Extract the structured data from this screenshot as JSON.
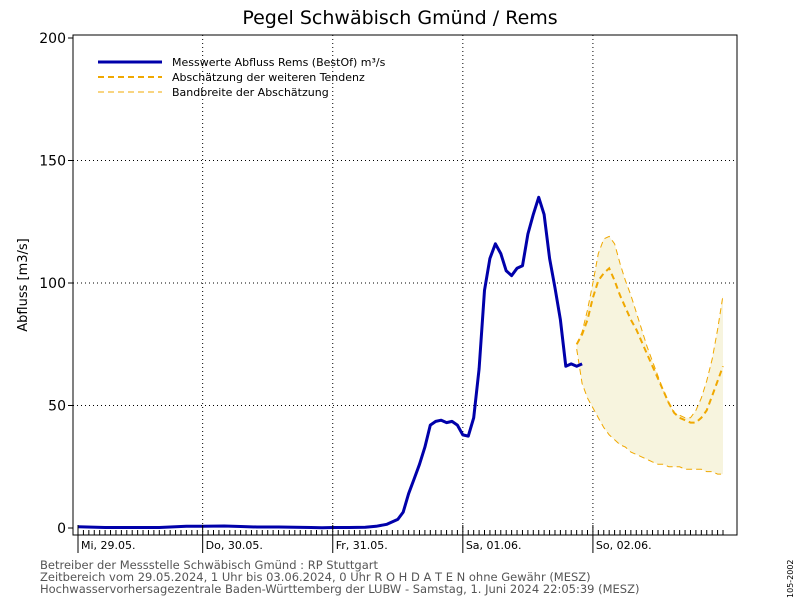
{
  "chart_data": {
    "type": "line",
    "title": "Pegel Schwäbisch Gmünd / Rems",
    "ylabel": "Abfluss [m3/s]",
    "xlabel": "",
    "ylim": [
      0,
      200
    ],
    "yticks": [
      0,
      50,
      100,
      150,
      200
    ],
    "grid": true,
    "legend_position": "top-left",
    "x_unit": "hours since 29.05.2024 01:00 (MESZ)",
    "day_labels": [
      {
        "label": "Mi, 29.05.",
        "x": 0
      },
      {
        "label": "Do, 30.05.",
        "x": 23
      },
      {
        "label": "Fr, 31.05.",
        "x": 47
      },
      {
        "label": "Sa, 01.06.",
        "x": 71
      },
      {
        "label": "So, 02.06.",
        "x": 95
      }
    ],
    "xlim": [
      0,
      119
    ],
    "series": [
      {
        "name": "Messwerte Abfluss Rems (BestOf)   m³/s",
        "color": "#0000aa",
        "style": "solid",
        "x": [
          0,
          5,
          10,
          15,
          18,
          20,
          23,
          27,
          30,
          33,
          37,
          40,
          43,
          45,
          47,
          50,
          53,
          55,
          57,
          59,
          60,
          61,
          62,
          63,
          64,
          65,
          66,
          67,
          68,
          69,
          70,
          71,
          72,
          73,
          74,
          75,
          76,
          77,
          78,
          79,
          80,
          81,
          82,
          83,
          84,
          85,
          86,
          87,
          88,
          89,
          90,
          91,
          92,
          93
        ],
        "values": [
          0.5,
          0.2,
          0.2,
          0.2,
          0.5,
          0.7,
          0.7,
          0.8,
          0.6,
          0.4,
          0.4,
          0.3,
          0.2,
          0.1,
          0.2,
          0.2,
          0.3,
          0.7,
          1.5,
          3.5,
          6.5,
          14,
          20,
          26,
          33,
          42,
          43.5,
          44,
          43,
          43.5,
          42,
          38,
          37.5,
          45,
          65,
          97,
          110,
          116,
          112,
          105,
          103,
          106,
          107,
          120,
          128,
          135,
          128,
          110,
          98,
          85,
          66,
          67,
          66,
          67
        ]
      },
      {
        "name": "Abschätzung der weiteren Tendenz",
        "color": "#f0a800",
        "style": "dashed",
        "x": [
          92,
          93,
          94,
          95,
          96,
          97,
          98,
          99,
          100,
          101,
          102,
          103,
          104,
          105,
          106,
          107,
          108,
          109,
          110,
          111,
          112,
          113,
          114,
          115,
          116,
          117,
          118,
          119
        ],
        "values": [
          75,
          79,
          85,
          94,
          101,
          104,
          106,
          101,
          95,
          90,
          85,
          81,
          76,
          71,
          66,
          61,
          56,
          51,
          47,
          45,
          44,
          43,
          43,
          45,
          48,
          54,
          60,
          66
        ]
      },
      {
        "name": "Bandbreite der Abschätzung",
        "color": "#f0a800",
        "style": "dashed-thin",
        "x": [
          92,
          93,
          94,
          95,
          96,
          97,
          98,
          99,
          100,
          101,
          102,
          103,
          104,
          105,
          106,
          107,
          108,
          109,
          110,
          111,
          112,
          113,
          114,
          115,
          116,
          117,
          118,
          119
        ],
        "upper": [
          75,
          80,
          89,
          100,
          112,
          118,
          119,
          116,
          108,
          101,
          95,
          88,
          81,
          74,
          68,
          62,
          56,
          51,
          47,
          46,
          45,
          45,
          48,
          53,
          60,
          69,
          81,
          95
        ],
        "lower": [
          73,
          59,
          53,
          49,
          45,
          41,
          38,
          36,
          34,
          33,
          31,
          30,
          29,
          28,
          27,
          26,
          26,
          25,
          25,
          25,
          24,
          24,
          24,
          24,
          23,
          23,
          22,
          22
        ]
      }
    ]
  },
  "footer": {
    "line1": "Betreiber der Messstelle Schwäbisch Gmünd : RP Stuttgart",
    "line2": "Zeitbereich vom 29.05.2024, 1 Uhr bis 03.06.2024, 0 Uhr    R O H D A T E N ohne Gewähr (MESZ)",
    "line3": "Hochwasservorhersagezentrale Baden-Württemberg der LUBW - Samstag, 1. Juni 2024 22:05:39 (MESZ)"
  },
  "side_code": "105-2002",
  "colors": {
    "measured": "#0000aa",
    "forecast": "#f0a800",
    "band_fill": "#f7f4de"
  }
}
